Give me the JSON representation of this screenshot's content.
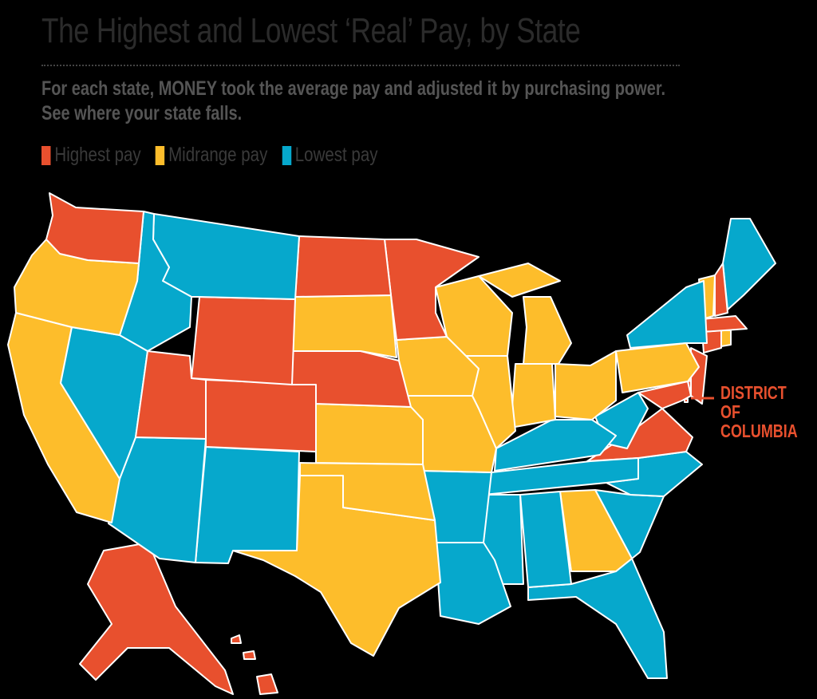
{
  "title": "The Highest and Lowest ‘Real’ Pay, by State",
  "subtitle_line1": "For each state, MONEY took the average pay and adjusted it by purchasing power.",
  "subtitle_line2": "See where your state falls.",
  "legend": [
    {
      "key": "high",
      "label": "Highest pay",
      "color": "#e8502e"
    },
    {
      "key": "mid",
      "label": "Midrange pay",
      "color": "#fdbd2b"
    },
    {
      "key": "low",
      "label": "Lowest pay",
      "color": "#06a8cc"
    }
  ],
  "dc_label": "DISTRICT\nOF\nCOLUMBIA",
  "states": {
    "WA": "high",
    "ND": "high",
    "MN": "high",
    "WY": "high",
    "UT": "high",
    "CO": "high",
    "NE": "high",
    "VA": "high",
    "MD": "high",
    "DE": "high",
    "NJ": "high",
    "CT": "high",
    "MA": "high",
    "NH": "high",
    "AK": "high",
    "HI": "high",
    "DC": "high",
    "OR": "mid",
    "CA": "mid",
    "SD": "mid",
    "IA": "mid",
    "WI": "mid",
    "MI": "mid",
    "IL": "mid",
    "IN": "mid",
    "OH": "mid",
    "PA": "mid",
    "KS": "mid",
    "MO": "mid",
    "OK": "mid",
    "TX": "mid",
    "GA": "mid",
    "VT": "mid",
    "RI": "mid",
    "ID": "low",
    "MT": "low",
    "NV": "low",
    "AZ": "low",
    "NM": "low",
    "AR": "low",
    "LA": "low",
    "MS": "low",
    "AL": "low",
    "TN": "low",
    "KY": "low",
    "WV": "low",
    "NC": "low",
    "SC": "low",
    "FL": "low",
    "ME": "low",
    "NY": "low"
  }
}
